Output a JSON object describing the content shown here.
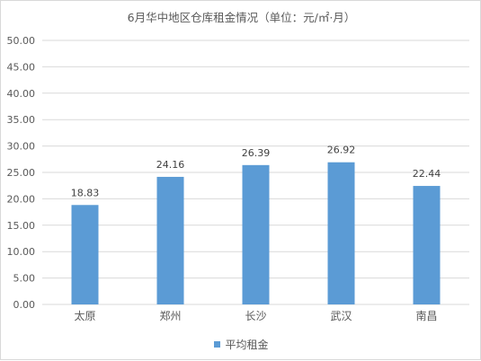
{
  "chart_data": {
    "type": "bar",
    "title": "6月华中地区仓库租金情况（单位：元/㎡·月）",
    "categories": [
      "太原",
      "郑州",
      "长沙",
      "武汉",
      "南昌"
    ],
    "series": [
      {
        "name": "平均租金",
        "values": [
          18.83,
          24.16,
          26.39,
          26.92,
          22.44
        ]
      }
    ],
    "data_labels": [
      "18.83",
      "24.16",
      "26.39",
      "26.92",
      "22.44"
    ],
    "y_ticks": [
      "0.00",
      "5.00",
      "10.00",
      "15.00",
      "20.00",
      "25.00",
      "30.00",
      "35.00",
      "40.00",
      "45.00",
      "50.00"
    ],
    "ylim": [
      0,
      50
    ],
    "ystep": 5,
    "grid": true,
    "legend_position": "bottom",
    "colors": {
      "bar": "#5b9bd5",
      "grid": "#d9d9d9",
      "text": "#595959"
    }
  }
}
